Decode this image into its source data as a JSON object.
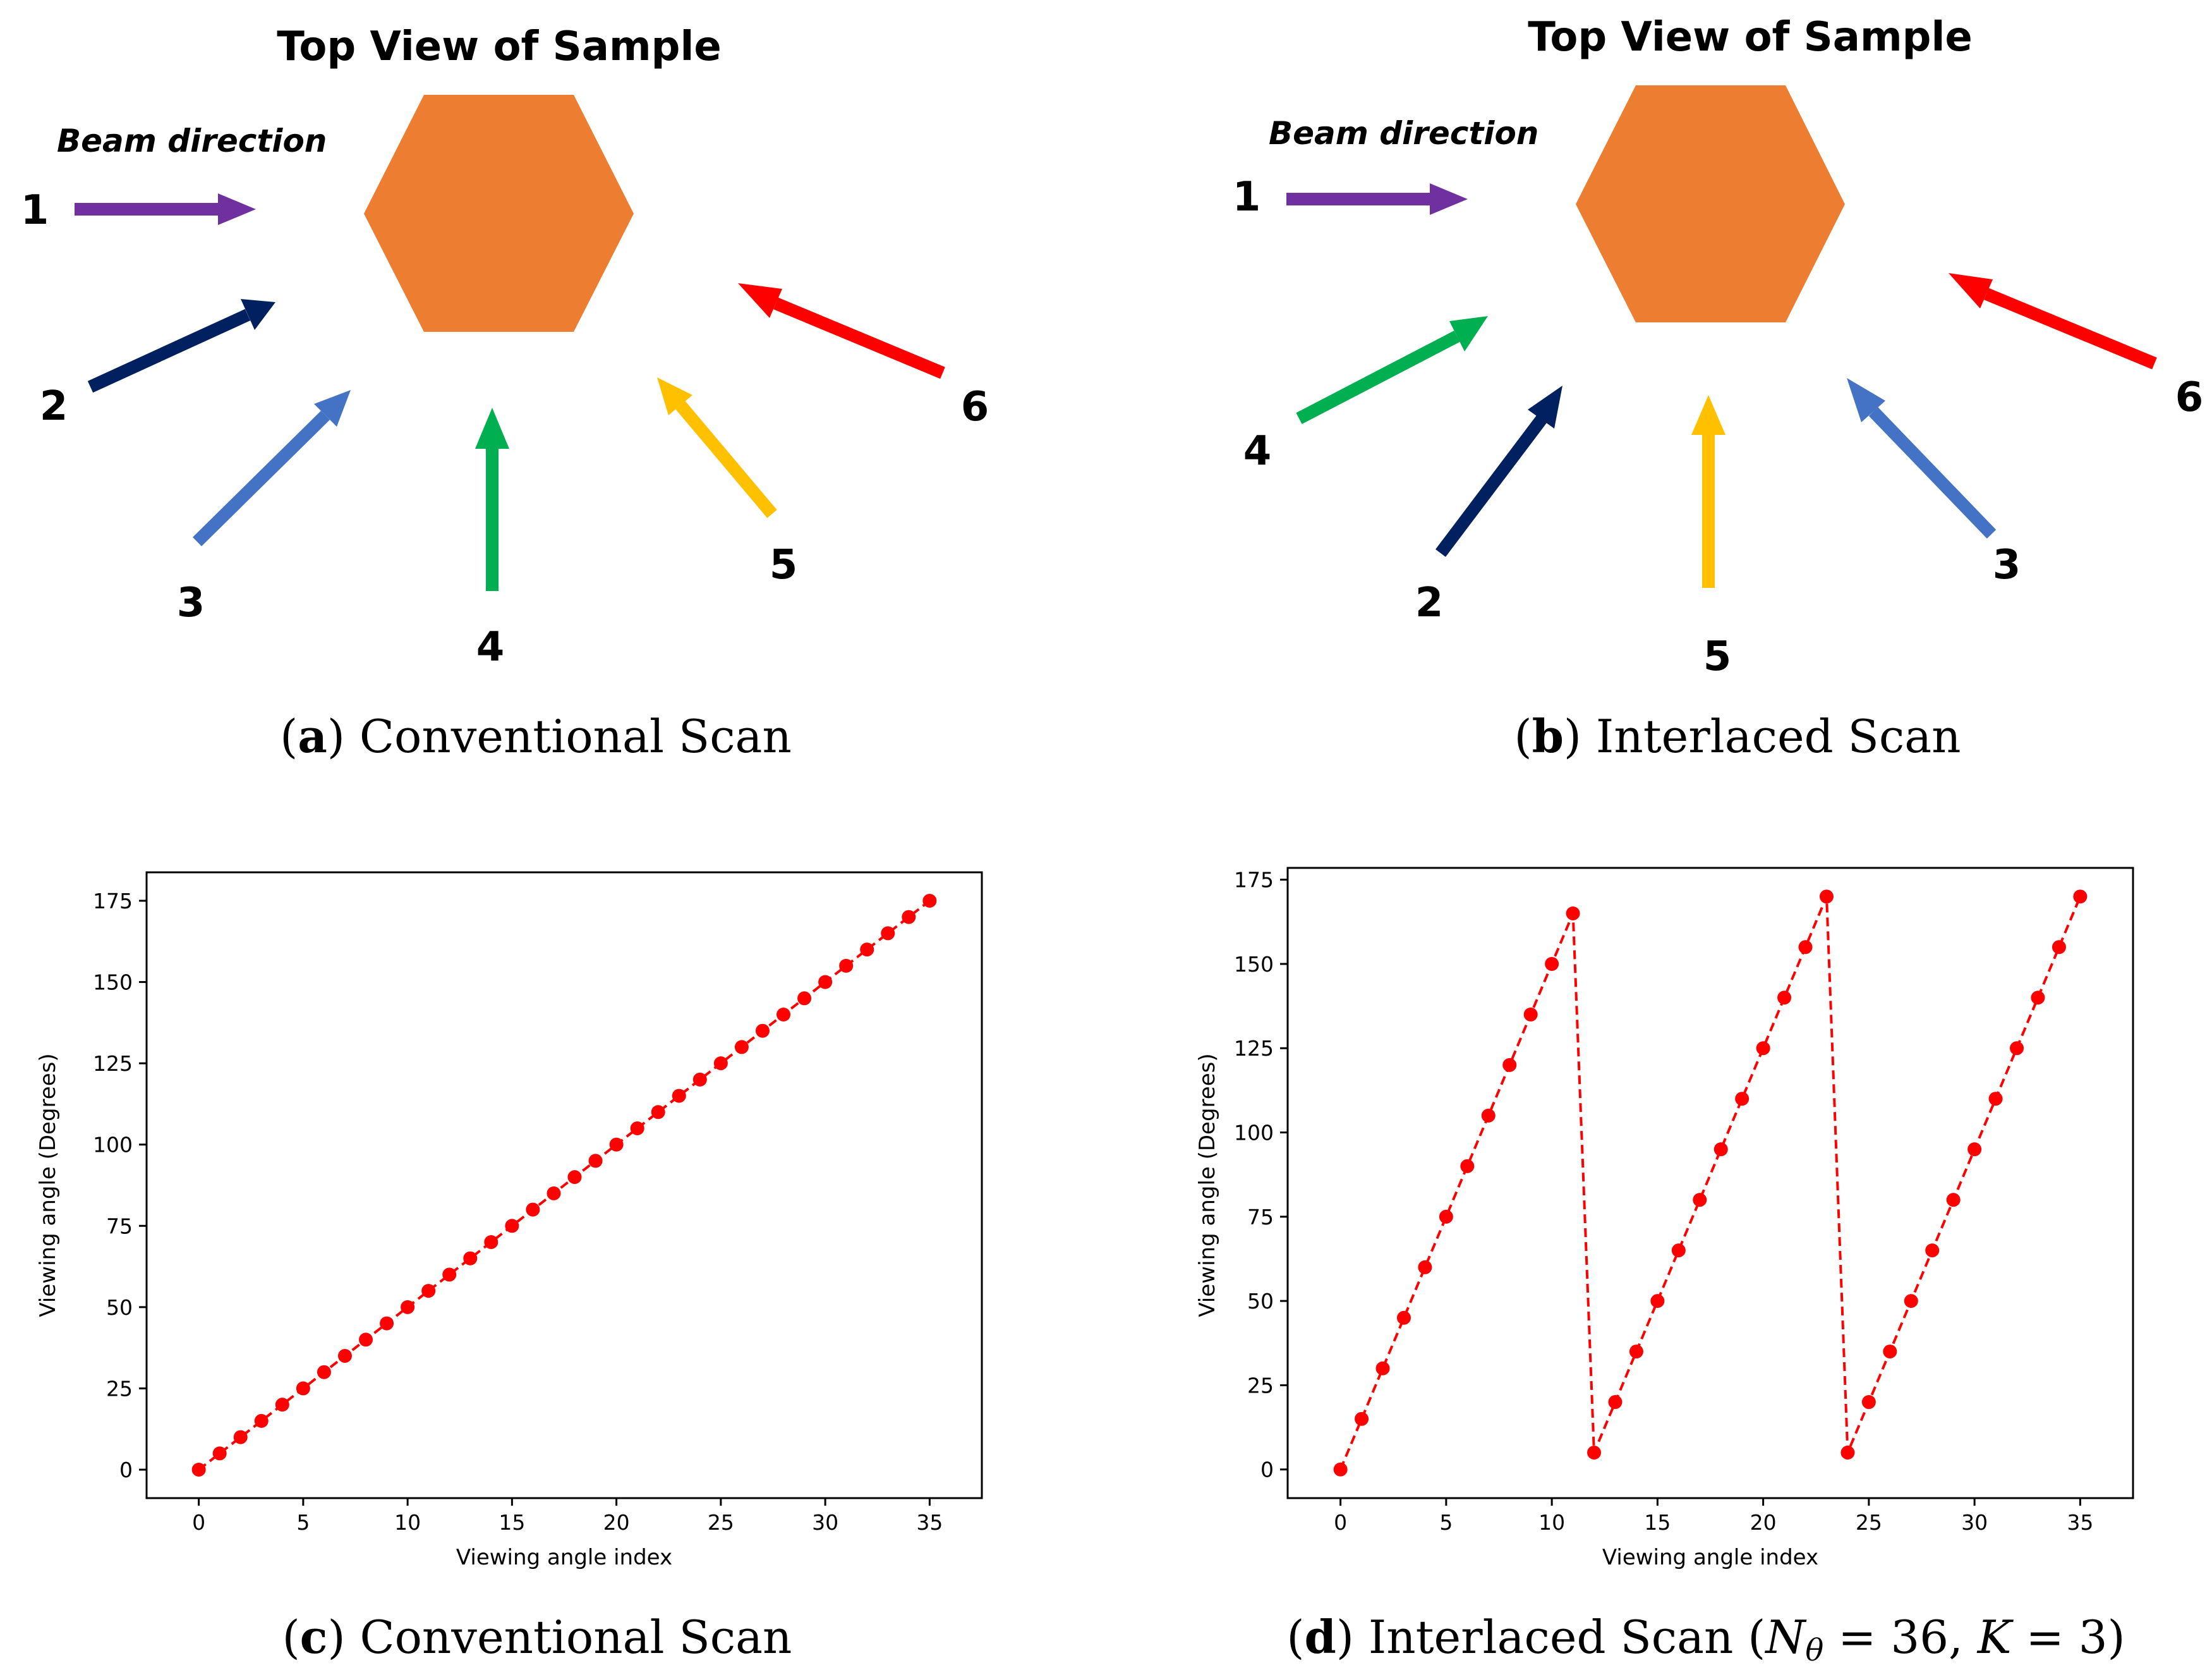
{
  "panel_a": {
    "title": "Top View of Sample",
    "beam_label": "Beam direction",
    "arrows": [
      {
        "label": "1",
        "color": "#7030a0",
        "angle_deg": 0
      },
      {
        "label": "2",
        "color": "#002060",
        "angle_deg": 30
      },
      {
        "label": "3",
        "color": "#4472c4",
        "angle_deg": 60
      },
      {
        "label": "4",
        "color": "#00b050",
        "angle_deg": 90
      },
      {
        "label": "5",
        "color": "#ffc000",
        "angle_deg": 120
      },
      {
        "label": "6",
        "color": "#ff0000",
        "angle_deg": 150
      }
    ],
    "caption_letter": "a",
    "caption_text": "Conventional Scan"
  },
  "panel_b": {
    "title": "Top View of Sample",
    "beam_label": "Beam direction",
    "arrows": [
      {
        "label": "1",
        "color": "#7030a0",
        "angle_deg": 0
      },
      {
        "label": "4",
        "color": "#00b050",
        "angle_deg": 30
      },
      {
        "label": "2",
        "color": "#002060",
        "angle_deg": 60
      },
      {
        "label": "5",
        "color": "#ffc000",
        "angle_deg": 90
      },
      {
        "label": "3",
        "color": "#4472c4",
        "angle_deg": 120
      },
      {
        "label": "6",
        "color": "#ff0000",
        "angle_deg": 150
      }
    ],
    "caption_letter": "b",
    "caption_text": "Interlaced Scan"
  },
  "hexagon_color": "#ed7d31",
  "caption_c": {
    "letter": "c",
    "text": "Conventional Scan"
  },
  "caption_d": {
    "letter": "d",
    "text": "Interlaced Scan",
    "math_N": "N",
    "math_theta": "θ",
    "math_rest": " = 36, ",
    "math_K": "K",
    "math_eq": " = 3)"
  },
  "chart_data": [
    {
      "type": "line",
      "title": "",
      "xlabel": "Viewing angle index",
      "ylabel": "Viewing angle (Degrees)",
      "xlim": [
        -2.5,
        37.5
      ],
      "ylim": [
        -8.75,
        183.75
      ],
      "xticks": [
        0,
        5,
        10,
        15,
        20,
        25,
        30,
        35
      ],
      "yticks": [
        0,
        25,
        50,
        75,
        100,
        125,
        150,
        175
      ],
      "line_color": "#ff0000",
      "line_style": "dashed",
      "marker": "circle",
      "x": [
        0,
        1,
        2,
        3,
        4,
        5,
        6,
        7,
        8,
        9,
        10,
        11,
        12,
        13,
        14,
        15,
        16,
        17,
        18,
        19,
        20,
        21,
        22,
        23,
        24,
        25,
        26,
        27,
        28,
        29,
        30,
        31,
        32,
        33,
        34,
        35
      ],
      "y": [
        0,
        5,
        10,
        15,
        20,
        25,
        30,
        35,
        40,
        45,
        50,
        55,
        60,
        65,
        70,
        75,
        80,
        85,
        90,
        95,
        100,
        105,
        110,
        115,
        120,
        125,
        130,
        135,
        140,
        145,
        150,
        155,
        160,
        165,
        170,
        175
      ]
    },
    {
      "type": "line",
      "title": "",
      "xlabel": "Viewing angle index",
      "ylabel": "Viewing angle (Degrees)",
      "xlim": [
        -2.5,
        37.5
      ],
      "ylim": [
        -8.5,
        178.5
      ],
      "xticks": [
        0,
        5,
        10,
        15,
        20,
        25,
        30,
        35
      ],
      "yticks": [
        0,
        25,
        50,
        75,
        100,
        125,
        150,
        175
      ],
      "line_color": "#ff0000",
      "line_style": "dashed",
      "marker": "circle",
      "x": [
        0,
        1,
        2,
        3,
        4,
        5,
        6,
        7,
        8,
        9,
        10,
        11,
        12,
        13,
        14,
        15,
        16,
        17,
        18,
        19,
        20,
        21,
        22,
        23,
        24,
        25,
        26,
        27,
        28,
        29,
        30,
        31,
        32,
        33,
        34,
        35
      ],
      "y": [
        0,
        15,
        30,
        45,
        60,
        75,
        90,
        105,
        120,
        135,
        150,
        165,
        5,
        20,
        35,
        50,
        65,
        80,
        95,
        110,
        125,
        140,
        155,
        170,
        5,
        20,
        35,
        50,
        65,
        80,
        95,
        110,
        125,
        140,
        155,
        170
      ]
    }
  ]
}
